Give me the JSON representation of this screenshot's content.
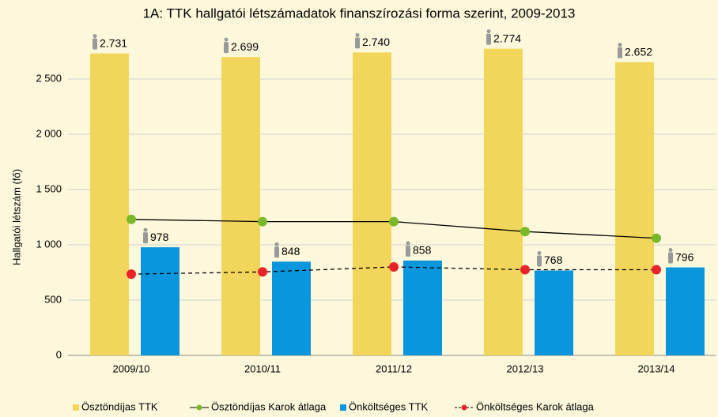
{
  "chart_data": {
    "type": "bar",
    "title": "1A: TTK hallgatói létszámadatok finanszírozási forma szerint, 2009-2013",
    "y_label": "Hallgatói létszám (fő)",
    "categories": [
      "2009/10",
      "2010/11",
      "2011/12",
      "2012/13",
      "2013/14"
    ],
    "series": [
      {
        "name": "Ösztöndíjas TTK",
        "type": "bar",
        "color": "#f2d65c",
        "values": [
          2731,
          2699,
          2740,
          2774,
          2652
        ],
        "value_labels": [
          "2.731",
          "2.699",
          "2.740",
          "2.774",
          "2.652"
        ]
      },
      {
        "name": "Ösztöndíjas Karok átlaga",
        "type": "line",
        "color": "#7ab829",
        "line_color": "#000000",
        "dashed": false,
        "values": [
          1230,
          1210,
          1210,
          1120,
          1060
        ]
      },
      {
        "name": "Önköltséges TTK",
        "type": "bar",
        "color": "#0a96dc",
        "values": [
          978,
          848,
          858,
          768,
          796
        ]
      },
      {
        "name": "Önköltséges Karok átlaga",
        "type": "line",
        "color": "#e8232b",
        "line_color": "#000000",
        "dashed": true,
        "values": [
          735,
          755,
          800,
          775,
          775
        ]
      }
    ],
    "ylim": [
      0,
      2500
    ],
    "yticks": [
      0,
      500,
      {
        "value": 1000,
        "label": "1 000"
      },
      {
        "value": 1500,
        "label": "1 500"
      },
      {
        "value": 2000,
        "label": "2 000"
      },
      {
        "value": 2500,
        "label": "2 500"
      }
    ],
    "grid": true,
    "legend": "bottom"
  }
}
